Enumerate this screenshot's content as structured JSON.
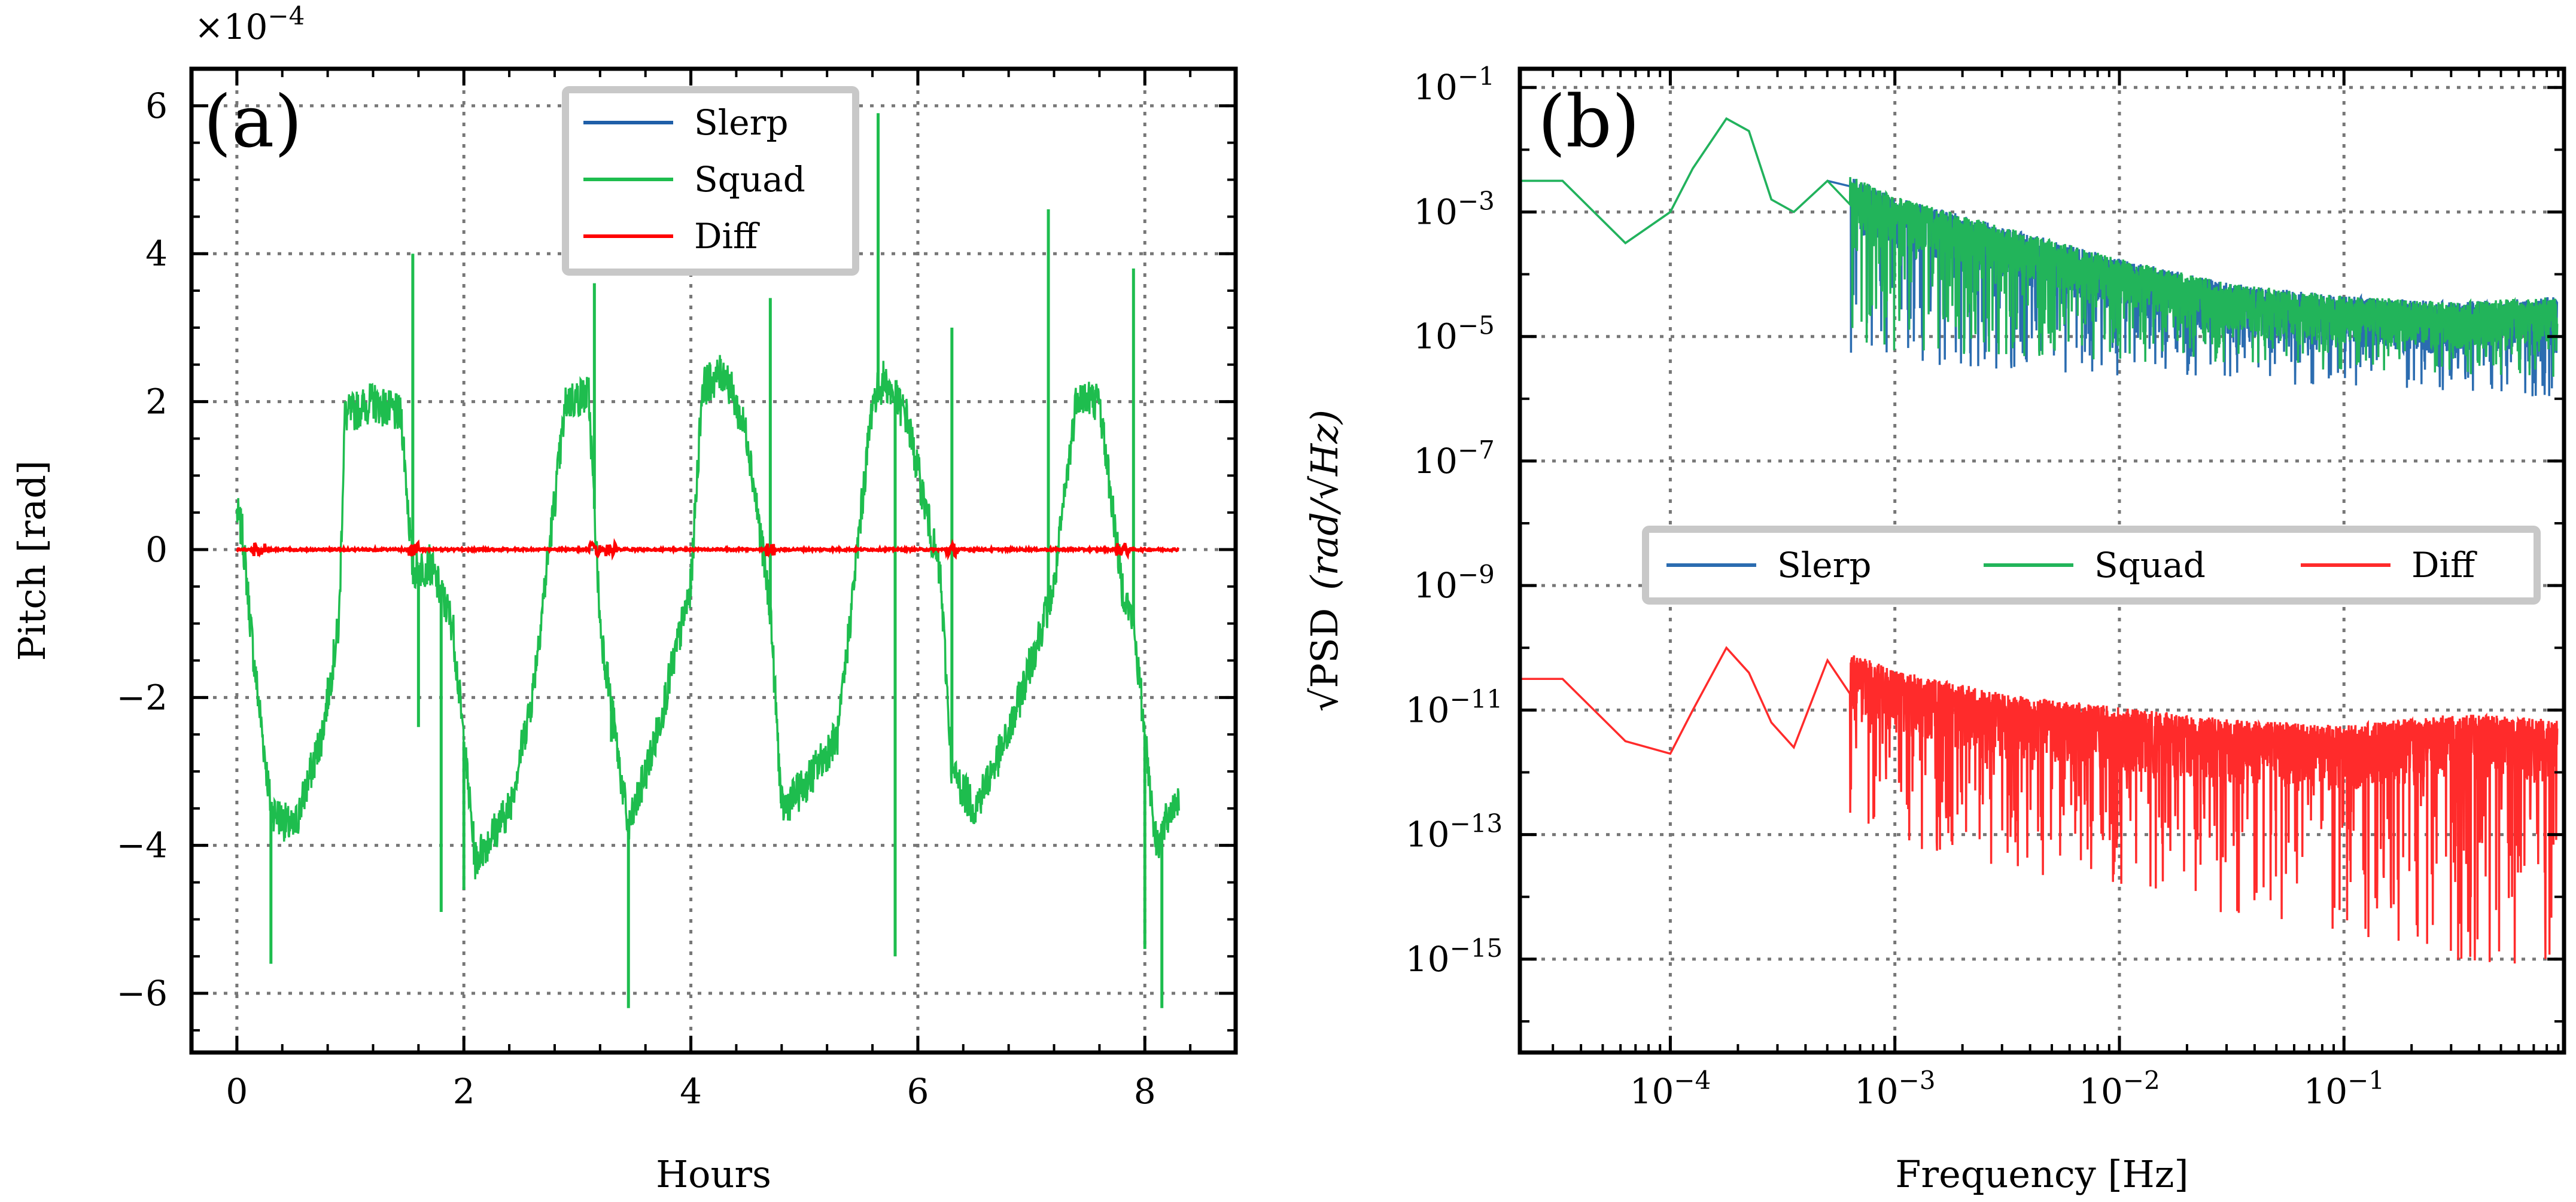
{
  "chart_data": [
    {
      "type": "line",
      "panel": "(a)",
      "xlabel": "Hours",
      "ylabel": "Pitch [rad]",
      "y_multiplier": "×10^−4",
      "y_multiplier_text": "×10",
      "y_multiplier_exp": "−4",
      "xlim": [
        -0.4,
        8.8
      ],
      "ylim": [
        -6.8,
        6.5
      ],
      "xticks": [
        0,
        2,
        4,
        6,
        8
      ],
      "xtick_labels": [
        "0",
        "2",
        "4",
        "6",
        "8"
      ],
      "yticks": [
        -6,
        -4,
        -2,
        0,
        2,
        4,
        6
      ],
      "ytick_labels": [
        "−6",
        "−4",
        "−2",
        "0",
        "2",
        "4",
        "6"
      ],
      "grid": true,
      "legend": {
        "position": "top-center",
        "entries": [
          "Slerp",
          "Squad",
          "Diff"
        ]
      },
      "series": [
        {
          "name": "Slerp",
          "color": "#1f5fa8",
          "x": [
            0,
            0.05,
            0.15,
            0.3,
            0.5,
            0.75,
            0.9,
            0.95,
            1.2,
            1.45,
            1.55,
            1.7,
            1.9,
            2.1,
            2.4,
            2.6,
            2.9,
            3.1,
            3.2,
            3.45,
            3.7,
            4.0,
            4.1,
            4.3,
            4.5,
            4.7,
            4.8,
            5.0,
            5.3,
            5.6,
            5.7,
            5.9,
            6.2,
            6.3,
            6.5,
            6.8,
            7.2,
            7.4,
            7.6,
            7.8,
            7.9,
            8.1,
            8.3
          ],
          "values": [
            0.5,
            0.2,
            -1.5,
            -3.5,
            -3.8,
            -2.5,
            -1.0,
            1.8,
            2.0,
            1.8,
            -0.3,
            -0.2,
            -1.0,
            -4.2,
            -3.5,
            -2.0,
            2.0,
            2.1,
            -1.0,
            -3.8,
            -2.5,
            -0.5,
            2.2,
            2.4,
            1.5,
            -0.8,
            -3.5,
            -3.2,
            -2.5,
            2.0,
            2.3,
            1.8,
            -0.4,
            -3.0,
            -3.5,
            -2.5,
            -0.5,
            2.1,
            2.0,
            -0.5,
            -1.0,
            -4.0,
            -3.3
          ]
        },
        {
          "name": "Squad",
          "color": "#1ebd4e",
          "x": [
            0,
            0.05,
            0.15,
            0.3,
            0.5,
            0.75,
            0.9,
            0.95,
            1.2,
            1.45,
            1.55,
            1.7,
            1.9,
            2.1,
            2.4,
            2.6,
            2.9,
            3.1,
            3.2,
            3.45,
            3.7,
            4.0,
            4.1,
            4.3,
            4.5,
            4.7,
            4.8,
            5.0,
            5.3,
            5.6,
            5.7,
            5.9,
            6.2,
            6.3,
            6.5,
            6.8,
            7.2,
            7.4,
            7.6,
            7.8,
            7.9,
            8.1,
            8.3
          ],
          "values": [
            0.5,
            0.2,
            -1.5,
            -3.5,
            -3.8,
            -2.5,
            -1.0,
            1.8,
            2.0,
            1.8,
            -0.3,
            -0.2,
            -1.0,
            -4.2,
            -3.5,
            -2.0,
            2.0,
            2.1,
            -1.0,
            -3.8,
            -2.5,
            -0.5,
            2.2,
            2.4,
            1.5,
            -0.8,
            -3.5,
            -3.2,
            -2.5,
            2.0,
            2.3,
            1.8,
            -0.4,
            -3.0,
            -3.5,
            -2.5,
            -0.5,
            2.1,
            2.0,
            -0.5,
            -1.0,
            -4.0,
            -3.3
          ],
          "spikes": [
            {
              "x": 0.3,
              "y": -5.6
            },
            {
              "x": 1.55,
              "y": 4.0
            },
            {
              "x": 1.6,
              "y": -2.4
            },
            {
              "x": 1.8,
              "y": -4.9
            },
            {
              "x": 2.0,
              "y": -4.6
            },
            {
              "x": 3.15,
              "y": 3.6
            },
            {
              "x": 3.3,
              "y": -2.6
            },
            {
              "x": 3.45,
              "y": -6.2
            },
            {
              "x": 4.7,
              "y": 3.4
            },
            {
              "x": 4.8,
              "y": -3.2
            },
            {
              "x": 5.65,
              "y": 5.9
            },
            {
              "x": 5.8,
              "y": -5.5
            },
            {
              "x": 6.3,
              "y": 3.0
            },
            {
              "x": 6.45,
              "y": -3.6
            },
            {
              "x": 7.15,
              "y": 4.6
            },
            {
              "x": 7.9,
              "y": 3.8
            },
            {
              "x": 8.0,
              "y": -5.4
            },
            {
              "x": 8.15,
              "y": -6.2
            }
          ]
        },
        {
          "name": "Diff",
          "color": "#ff0000",
          "x": [
            0,
            8.3
          ],
          "values": [
            0,
            0
          ],
          "bursts": [
            0.2,
            1.55,
            3.15,
            3.3,
            4.7,
            6.3,
            7.8
          ]
        }
      ]
    },
    {
      "type": "line",
      "panel": "(b)",
      "xscale": "log",
      "yscale": "log",
      "xlabel": "Frequency [Hz]",
      "ylabel": "√PSD (rad/√Hz)",
      "ylabel_main": "√PSD",
      "ylabel_unit": "(rad/√Hz)",
      "xlim_log10": [
        -4.67,
        -0.02
      ],
      "ylim_log10": [
        -16.5,
        -0.7
      ],
      "xticks_log10": [
        -4,
        -3,
        -2,
        -1
      ],
      "xtick_labels": [
        "10^−4",
        "10^−3",
        "10^−2",
        "10^−1"
      ],
      "xtick_exps": [
        "−4",
        "−3",
        "−2",
        "−1"
      ],
      "yticks_log10": [
        -1,
        -3,
        -5,
        -7,
        -9,
        -11,
        -13,
        -15
      ],
      "ytick_exps": [
        "−1",
        "−3",
        "−5",
        "−7",
        "−9",
        "−11",
        "−13",
        "−15"
      ],
      "tick_base": "10",
      "grid": true,
      "legend": {
        "position": "center-right",
        "entries": [
          "Slerp",
          "Squad",
          "Diff"
        ]
      },
      "series": [
        {
          "name": "Slerp",
          "color": "#2b6cb0",
          "x_log10": [
            -4.67,
            -4.48,
            -4.2,
            -4.0,
            -3.9,
            -3.75,
            -3.65,
            -3.55,
            -3.45,
            -3.3,
            -3.0,
            -2.5,
            -2.0,
            -1.5,
            -1.0,
            -0.5,
            -0.05
          ],
          "y_log10": [
            -2.5,
            -2.5,
            -3.5,
            -3.0,
            -2.3,
            -1.5,
            -1.7,
            -2.8,
            -3.0,
            -2.5,
            -3.0,
            -3.5,
            -4.0,
            -4.4,
            -4.6,
            -4.7,
            -4.6
          ],
          "noise_floor_log10": [
            -6.0,
            -5.8
          ]
        },
        {
          "name": "Squad",
          "color": "#22b45a",
          "x_log10": [
            -4.67,
            -4.48,
            -4.2,
            -4.0,
            -3.9,
            -3.75,
            -3.65,
            -3.55,
            -3.45,
            -3.3,
            -3.0,
            -2.5,
            -2.0,
            -1.5,
            -1.0,
            -0.5,
            -0.05
          ],
          "y_log10": [
            -2.5,
            -2.5,
            -3.5,
            -3.0,
            -2.3,
            -1.5,
            -1.7,
            -2.8,
            -3.0,
            -2.5,
            -3.0,
            -3.5,
            -4.0,
            -4.4,
            -4.6,
            -4.7,
            -4.6
          ]
        },
        {
          "name": "Diff",
          "color": "#ff2b2b",
          "x_log10": [
            -4.67,
            -4.48,
            -4.2,
            -4.0,
            -3.9,
            -3.75,
            -3.65,
            -3.55,
            -3.45,
            -3.3,
            -3.0,
            -2.5,
            -2.0,
            -1.5,
            -1.0,
            -0.5,
            -0.05
          ],
          "y_log10": [
            -10.5,
            -10.5,
            -11.5,
            -11.7,
            -11.0,
            -10.0,
            -10.4,
            -11.2,
            -11.6,
            -10.2,
            -10.6,
            -11.0,
            -11.2,
            -11.4,
            -11.5,
            -11.3,
            -11.4
          ],
          "noise_floor_log10": [
            -13.0,
            -15.5
          ]
        }
      ]
    }
  ]
}
